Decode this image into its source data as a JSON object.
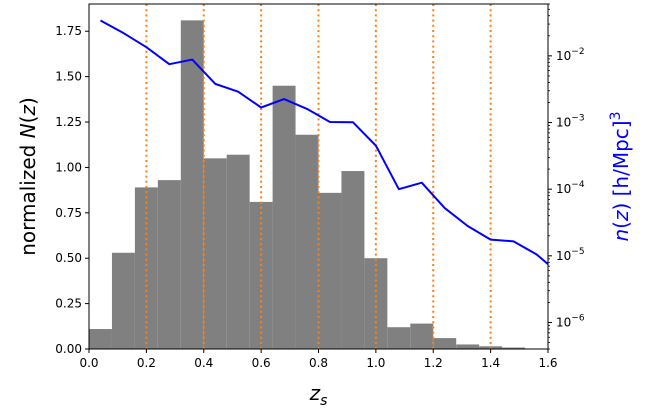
{
  "chart_data": {
    "type": "bar",
    "xlabel": "z_s",
    "ylabel_left": "normalized N(z)",
    "ylabel_right": "n(z) [h/Mpc]^3",
    "xlim": [
      0.0,
      1.6
    ],
    "ylim_left": [
      0.0,
      1.9
    ],
    "ylim_right": [
      4e-07,
      0.06
    ],
    "right_scale": "log",
    "x_ticks": [
      "0.0",
      "0.2",
      "0.4",
      "0.6",
      "0.8",
      "1.0",
      "1.2",
      "1.4",
      "1.6"
    ],
    "left_y_ticks": [
      "0.00",
      "0.25",
      "0.50",
      "0.75",
      "1.00",
      "1.25",
      "1.50",
      "1.75"
    ],
    "right_y_ticks": [
      {
        "base": "10",
        "exp": "−6",
        "value": 1e-06
      },
      {
        "base": "10",
        "exp": "−5",
        "value": 1e-05
      },
      {
        "base": "10",
        "exp": "−4",
        "value": 0.0001
      },
      {
        "base": "10",
        "exp": "−3",
        "value": 0.001
      },
      {
        "base": "10",
        "exp": "−2",
        "value": 0.01
      }
    ],
    "histogram": {
      "color": "#808080",
      "bin_edges": [
        0.0,
        0.08,
        0.16,
        0.24,
        0.32,
        0.4,
        0.48,
        0.56,
        0.64,
        0.72,
        0.8,
        0.88,
        0.96,
        1.04,
        1.12,
        1.2,
        1.28,
        1.36,
        1.44,
        1.52,
        1.6
      ],
      "values": [
        0.11,
        0.53,
        0.89,
        0.93,
        1.81,
        1.05,
        1.07,
        0.81,
        1.45,
        1.18,
        0.86,
        0.98,
        0.5,
        0.12,
        0.14,
        0.06,
        0.025,
        0.015,
        0.008,
        0.0
      ]
    },
    "line": {
      "color": "#0000ff",
      "x": [
        0.04,
        0.12,
        0.2,
        0.28,
        0.36,
        0.44,
        0.52,
        0.6,
        0.68,
        0.76,
        0.84,
        0.92,
        1.0,
        1.08,
        1.16,
        1.24,
        1.32,
        1.4,
        1.48,
        1.56,
        1.6
      ],
      "y": [
        0.034,
        0.022,
        0.0135,
        0.0075,
        0.0088,
        0.0038,
        0.0029,
        0.00168,
        0.00225,
        0.0016,
        0.00102,
        0.00101,
        0.00045,
        0.0001,
        0.000125,
        5.2e-05,
        2.8e-05,
        1.75e-05,
        1.65e-05,
        1.05e-05,
        7.5e-06
      ]
    },
    "vlines": {
      "color": "#ff7f0e",
      "x": [
        0.2,
        0.4,
        0.6,
        0.8,
        1.0,
        1.2,
        1.4
      ]
    }
  }
}
